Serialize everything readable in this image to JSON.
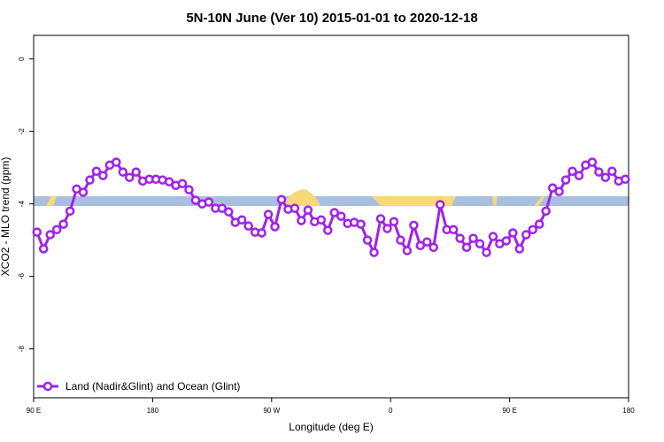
{
  "chart_data": {
    "type": "line",
    "title": "5N-10N June (Ver 10)   2015-01-01 to 2020-12-18",
    "x_label": "Longitude (deg E)",
    "y_label": "XCO2 - MLO trend (ppm)",
    "xlim": [
      90,
      540
    ],
    "ylim": [
      -9.35,
      0.65
    ],
    "xticks": [
      {
        "value": 90,
        "label": "90 E"
      },
      180,
      {
        "value": 270,
        "label": "90 W"
      },
      {
        "value": 360,
        "label": "0"
      },
      {
        "value": 450,
        "label": "90 E"
      },
      {
        "value": 540,
        "label": "180"
      }
    ],
    "yticks": [
      0,
      -2,
      -4,
      -6,
      -8
    ],
    "legend": "bottom-left",
    "x": [
      92.5,
      97.5,
      102.5,
      107.5,
      112.5,
      117.5,
      122.5,
      127.5,
      132.5,
      137.5,
      142.5,
      147.5,
      152.5,
      157.5,
      162.5,
      167.5,
      172.5,
      177.5,
      182.5,
      187.5,
      192.5,
      197.5,
      202.5,
      207.5,
      212.5,
      217.5,
      222.5,
      227.5,
      232.5,
      237.5,
      242.5,
      247.5,
      252.5,
      257.5,
      262.5,
      267.5,
      272.5,
      277.5,
      282.5,
      287.5,
      292.5,
      297.5,
      302.5,
      307.5,
      312.5,
      317.5,
      322.5,
      327.5,
      332.5,
      337.5,
      342.5,
      347.5,
      352.5,
      357.5,
      362.5,
      367.5,
      372.5,
      377.5,
      382.5,
      387.5,
      392.5,
      397.5,
      402.5,
      407.5,
      412.5,
      417.5,
      422.5,
      427.5,
      432.5,
      437.5,
      442.5,
      447.5,
      452.5,
      457.5,
      462.5,
      467.5,
      472.5,
      477.5,
      482.5,
      487.5,
      492.5,
      497.5,
      502.5,
      507.5,
      512.5,
      517.5,
      522.5,
      527.5,
      532.5,
      537.5
    ],
    "series": [
      {
        "name": "Land (Nadir&Glint) and Ocean (Glint)",
        "color": "#a020f0",
        "values": [
          -4.78,
          -5.24,
          -4.85,
          -4.71,
          -4.56,
          -4.2,
          -3.59,
          -3.68,
          -3.34,
          -3.1,
          -3.22,
          -2.93,
          -2.85,
          -3.12,
          -3.27,
          -3.12,
          -3.37,
          -3.32,
          -3.32,
          -3.34,
          -3.39,
          -3.49,
          -3.44,
          -3.61,
          -3.9,
          -4.0,
          -3.95,
          -4.12,
          -4.12,
          -4.22,
          -4.51,
          -4.44,
          -4.61,
          -4.78,
          -4.8,
          -4.29,
          -4.63,
          -3.88,
          -4.15,
          -4.12,
          -4.46,
          -4.17,
          -4.49,
          -4.44,
          -4.73,
          -4.24,
          -4.34,
          -4.54,
          -4.51,
          -4.56,
          -5.0,
          -5.34,
          -4.41,
          -4.68,
          -4.49,
          -5.0,
          -5.29,
          -4.59,
          -5.15,
          -5.05,
          -5.2,
          -4.02,
          -4.71,
          -4.71,
          -4.95,
          -5.2,
          -4.95,
          -5.1,
          -5.34,
          -4.9,
          -5.1,
          -5.02,
          -4.8,
          -5.24,
          -4.85,
          -4.71,
          -4.56,
          -4.2,
          -3.56,
          -3.66,
          -3.34,
          -3.1,
          -3.22,
          -2.93,
          -2.85,
          -3.12,
          -3.27,
          -3.1,
          -3.37,
          -3.32
        ]
      }
    ]
  }
}
